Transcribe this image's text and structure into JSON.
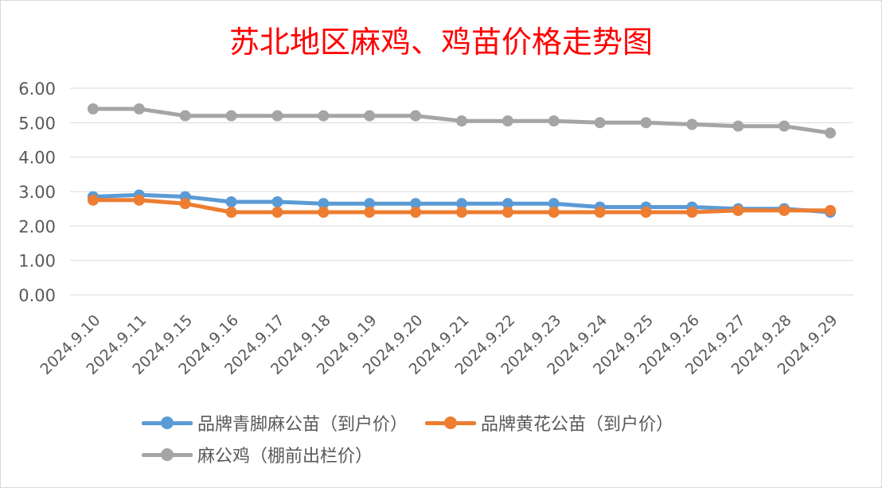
{
  "chart_data": {
    "type": "line",
    "title": "苏北地区麻鸡、鸡苗价格走势图",
    "categories": [
      "2024.9.10",
      "2024.9.11",
      "2024.9.15",
      "2024.9.16",
      "2024.9.17",
      "2024.9.18",
      "2024.9.19",
      "2024.9.20",
      "2024.9.21",
      "2024.9.22",
      "2024.9.23",
      "2024.9.24",
      "2024.9.25",
      "2024.9.26",
      "2024.9.27",
      "2024.9.28",
      "2024.9.29"
    ],
    "y_ticks": [
      "0.00",
      "1.00",
      "2.00",
      "3.00",
      "4.00",
      "5.00",
      "6.00"
    ],
    "ylim": [
      0,
      6
    ],
    "grid": true,
    "legend_position": "bottom",
    "series": [
      {
        "name": "品牌青脚麻公苗（到户价）",
        "color": "#5b9bd5",
        "values": [
          2.85,
          2.9,
          2.85,
          2.7,
          2.7,
          2.65,
          2.65,
          2.65,
          2.65,
          2.65,
          2.65,
          2.55,
          2.55,
          2.55,
          2.5,
          2.5,
          2.4
        ]
      },
      {
        "name": "品牌黄花公苗（到户价）",
        "color": "#ed7d31",
        "values": [
          2.75,
          2.75,
          2.65,
          2.4,
          2.4,
          2.4,
          2.4,
          2.4,
          2.4,
          2.4,
          2.4,
          2.4,
          2.4,
          2.4,
          2.45,
          2.45,
          2.45
        ]
      },
      {
        "name": "麻公鸡（棚前出栏价）",
        "color": "#a5a5a5",
        "values": [
          5.4,
          5.4,
          5.2,
          5.2,
          5.2,
          5.2,
          5.2,
          5.2,
          5.05,
          5.05,
          5.05,
          5.0,
          5.0,
          4.95,
          4.9,
          4.9,
          4.7
        ]
      }
    ]
  }
}
